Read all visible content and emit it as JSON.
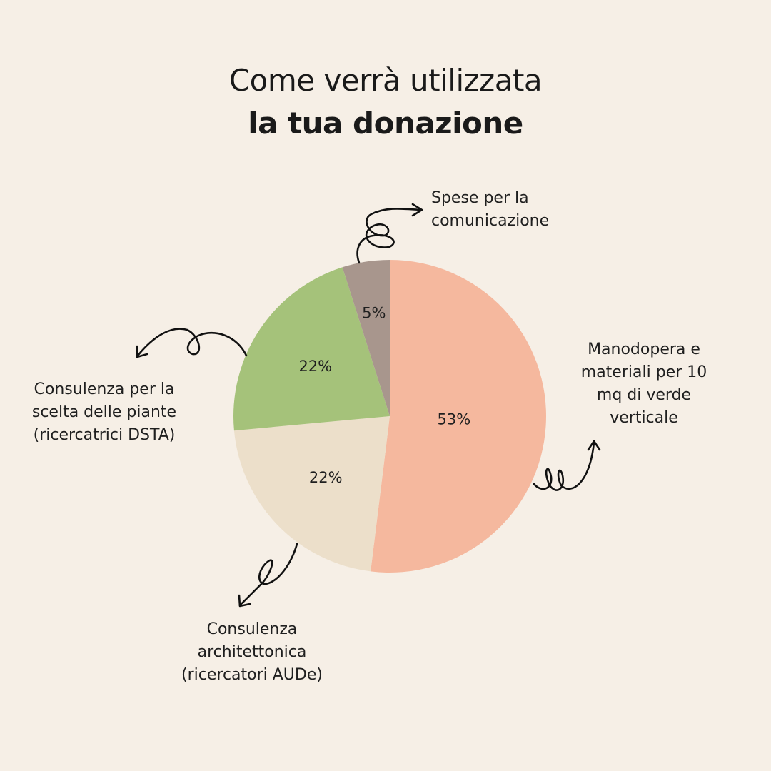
{
  "header": {
    "title_line1": "Come verrà utilizzata",
    "title_line2": "la tua donazione"
  },
  "chart_data": {
    "type": "pie",
    "title": "Come verrà utilizzata la tua donazione",
    "slices": [
      {
        "label": "Manodopera e materiali per 10 mq di verde verticale",
        "value": 53,
        "display": "53%",
        "color": "#f5b89e"
      },
      {
        "label": "Consulenza architettonica (ricercatori AUDe)",
        "value": 22,
        "display": "22%",
        "color": "#ecdfca"
      },
      {
        "label": "Consulenza per la scelta delle piante (ricercatrici DSTA)",
        "value": 22,
        "display": "22%",
        "color": "#a5c27a"
      },
      {
        "label": "Spese per la comunicazione",
        "value": 5,
        "display": "5%",
        "color": "#a8968d"
      }
    ]
  },
  "labels": {
    "comunicazione": "Spese per la\ncomunicazione",
    "manodopera": "Manodopera e\nmateriali per 10\nmq di verde\nverticale",
    "piante": "Consulenza per la\nscelta delle piante\n(ricercatrici DSTA)",
    "architettonica": "Consulenza\narchitettonica\n(ricercatori AUDe)"
  }
}
